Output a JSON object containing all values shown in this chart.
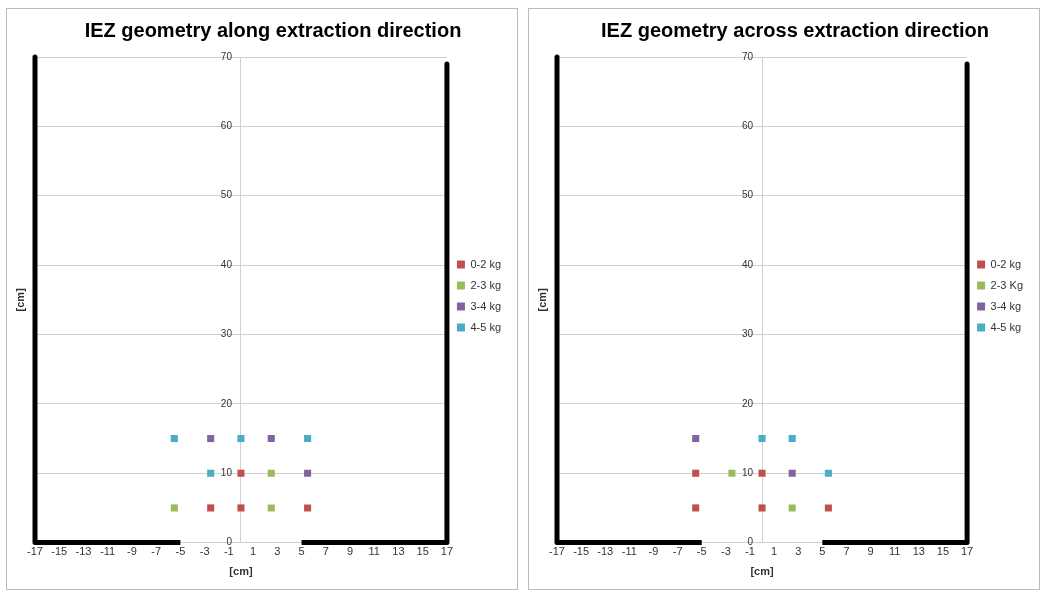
{
  "chart_data": [
    {
      "type": "scatter",
      "title": "IEZ geometry along extraction direction",
      "xlabel": "[cm]",
      "ylabel": "[cm]",
      "xlim": [
        -17,
        17
      ],
      "xticks": [
        -17,
        -15,
        -13,
        -11,
        -9,
        -7,
        -5,
        -3,
        -1,
        1,
        3,
        5,
        7,
        9,
        11,
        13,
        15,
        17
      ],
      "ylim": [
        0,
        70
      ],
      "yticks": [
        0,
        10,
        20,
        30,
        40,
        50,
        60,
        70
      ],
      "grid": "y",
      "legend": "right",
      "marker": "square",
      "series": [
        {
          "name": "0-2 kg",
          "color": "#c0504d",
          "x": [
            0,
            -2.5,
            0,
            5.5
          ],
          "values": [
            10,
            5,
            5,
            5
          ]
        },
        {
          "name": "2-3 kg",
          "color": "#9bbb59",
          "x": [
            2.5,
            -5.5,
            2.5
          ],
          "values": [
            10,
            5,
            5
          ]
        },
        {
          "name": "3-4 kg",
          "color": "#8064a2",
          "x": [
            -2.5,
            2.5,
            5.5
          ],
          "values": [
            15,
            15,
            10
          ]
        },
        {
          "name": "4-5 kg",
          "color": "#4bacc6",
          "x": [
            -5.5,
            0,
            5.5,
            -2.5
          ],
          "values": [
            15,
            15,
            15,
            10
          ]
        },
        {
          "type": "line",
          "marker": "none",
          "color": "#000000",
          "x": [
            -17,
            -17,
            -5
          ],
          "values": [
            70,
            0,
            0
          ]
        },
        {
          "type": "line",
          "marker": "none",
          "color": "#000000",
          "x": [
            17,
            17,
            5
          ],
          "values": [
            69,
            0,
            0
          ]
        }
      ]
    },
    {
      "type": "scatter",
      "title": "IEZ geometry across extraction direction",
      "xlabel": "[cm]",
      "ylabel": "[cm]",
      "xlim": [
        -17,
        17
      ],
      "xticks": [
        -17,
        -15,
        -13,
        -11,
        -9,
        -7,
        -5,
        -3,
        -1,
        1,
        3,
        5,
        7,
        9,
        11,
        13,
        15,
        17
      ],
      "ylim": [
        0,
        70
      ],
      "yticks": [
        0,
        10,
        20,
        30,
        40,
        50,
        60,
        70
      ],
      "grid": "y",
      "legend": "right",
      "marker": "square",
      "series": [
        {
          "name": "0-2 kg",
          "color": "#c0504d",
          "x": [
            -5.5,
            0,
            -5.5,
            0,
            5.5
          ],
          "values": [
            10,
            10,
            5,
            5,
            5
          ]
        },
        {
          "name": "2-3 Kg",
          "color": "#9bbb59",
          "x": [
            -2.5,
            2.5
          ],
          "values": [
            10,
            5
          ]
        },
        {
          "name": "3-4 kg",
          "color": "#8064a2",
          "x": [
            -5.5,
            2.5
          ],
          "values": [
            15,
            10
          ]
        },
        {
          "name": "4-5 kg",
          "color": "#4bacc6",
          "x": [
            0,
            2.5,
            5.5
          ],
          "values": [
            15,
            15,
            10
          ]
        },
        {
          "type": "line",
          "marker": "none",
          "color": "#000000",
          "x": [
            -17,
            -17,
            -5
          ],
          "values": [
            70,
            0,
            0
          ]
        },
        {
          "type": "line",
          "marker": "none",
          "color": "#000000",
          "x": [
            17,
            17,
            5
          ],
          "values": [
            69,
            0,
            0
          ]
        }
      ]
    }
  ]
}
